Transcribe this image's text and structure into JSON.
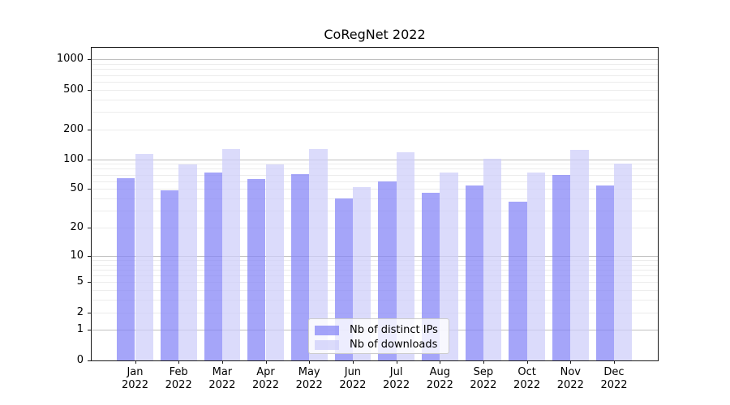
{
  "title": "CoRegNet 2022",
  "colors": {
    "bar_ips": "rgba(130,130,246,0.72)",
    "bar_downloads": "rgba(205,205,250,0.72)",
    "bar_ips_solid": "#a7a7f7",
    "bar_downloads_solid": "#d8d8f9",
    "major_grid": "#c0c0c0",
    "minor_grid": "#ececec",
    "axis": "#1a1a1a",
    "legend_border": "#cccccc"
  },
  "legend": {
    "items": [
      {
        "label": "Nb of distinct IPs",
        "color_key": "bar_ips"
      },
      {
        "label": "Nb of downloads",
        "color_key": "bar_downloads"
      }
    ],
    "position": "lower center"
  },
  "y_axis": {
    "scale": "log1p",
    "tick_values": [
      0,
      1,
      2,
      5,
      10,
      20,
      50,
      100,
      200,
      500,
      1000
    ],
    "tick_labels": [
      "0",
      "1",
      "2",
      "5",
      "10",
      "20",
      "50",
      "100",
      "200",
      "500",
      "1000"
    ]
  },
  "x_axis": {
    "months": [
      "Jan",
      "Feb",
      "Mar",
      "Apr",
      "May",
      "Jun",
      "Jul",
      "Aug",
      "Sep",
      "Oct",
      "Nov",
      "Dec"
    ],
    "year": "2022"
  },
  "chart_data": {
    "type": "bar",
    "title": "CoRegNet 2022",
    "categories": [
      "Jan 2022",
      "Feb 2022",
      "Mar 2022",
      "Apr 2022",
      "May 2022",
      "Jun 2022",
      "Jul 2022",
      "Aug 2022",
      "Sep 2022",
      "Oct 2022",
      "Nov 2022",
      "Dec 2022"
    ],
    "series": [
      {
        "name": "Nb of distinct IPs",
        "values": [
          64,
          48,
          73,
          63,
          71,
          40,
          60,
          46,
          54,
          37,
          69,
          54
        ]
      },
      {
        "name": "Nb of downloads",
        "values": [
          114,
          88,
          127,
          88,
          126,
          52,
          118,
          74,
          102,
          74,
          125,
          90
        ]
      }
    ],
    "xlabel": "",
    "ylabel": "",
    "yscale": "symlog-log1p",
    "ylim": [
      0,
      1300
    ],
    "grid": true,
    "legend_position": "lower center"
  }
}
